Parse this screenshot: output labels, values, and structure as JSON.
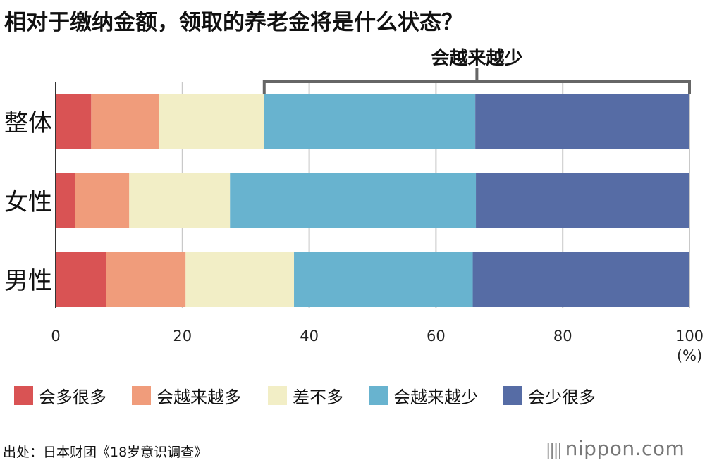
{
  "title": "相对于缴纳金额，领取的养老金将是什么状态？",
  "source": "出处：日本财团《18岁意识调查》",
  "logo": "nippon.com",
  "colors": {
    "grid": "#c9c9c9",
    "axis": "#333333",
    "bracket": "#666666"
  },
  "chart_data": {
    "type": "bar",
    "orientation": "horizontal",
    "stacked": true,
    "categories": [
      "整体",
      "女性",
      "男性"
    ],
    "series": [
      {
        "name": "会多很多",
        "color": "#d95354",
        "values": [
          5.6,
          3.1,
          7.9
        ]
      },
      {
        "name": "会越来越多",
        "color": "#f09c7b",
        "values": [
          10.7,
          8.5,
          12.6
        ]
      },
      {
        "name": "差不多",
        "color": "#f2eec6",
        "values": [
          16.6,
          15.9,
          17.1
        ]
      },
      {
        "name": "会越来越少",
        "color": "#68b3cf",
        "values": [
          33.3,
          38.8,
          28.2
        ]
      },
      {
        "name": "会少很多",
        "color": "#566ca5",
        "values": [
          33.8,
          33.7,
          34.2
        ]
      }
    ],
    "xlim": [
      0,
      100
    ],
    "xticks": [
      0,
      20,
      40,
      60,
      80,
      100
    ],
    "xunit": "(%)",
    "grid": true,
    "legend": "bottom",
    "annotation": {
      "text": "会越来越少",
      "from": 32.9,
      "to": 100
    }
  }
}
